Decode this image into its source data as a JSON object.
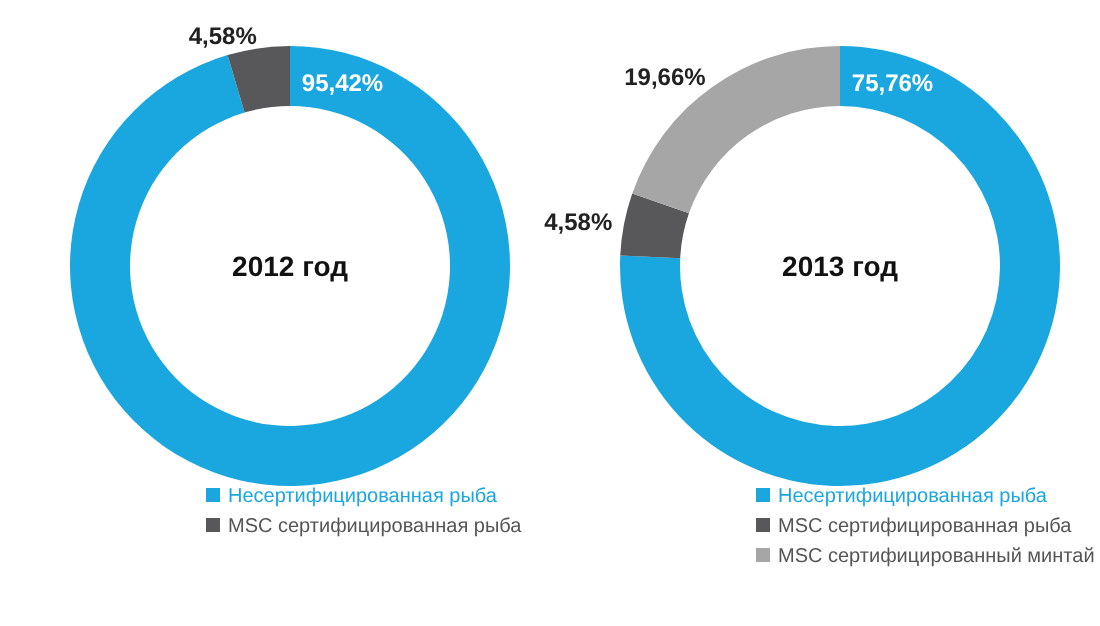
{
  "chart_data": [
    {
      "type": "donut",
      "title": "2012 год",
      "categories": [
        "Несертифицированная рыба",
        "MSC сертифицированная рыба"
      ],
      "values": [
        95.42,
        4.58
      ],
      "colors": [
        "#1aa7df",
        "#58585a"
      ],
      "value_labels": [
        "95,42%",
        "4,58%"
      ],
      "legend": "bottom"
    },
    {
      "type": "donut",
      "title": "2013 год",
      "categories": [
        "Несертифицированная рыба",
        "MSC сертифицированная рыба",
        "MSC сертифицированный минтай"
      ],
      "values": [
        75.76,
        4.58,
        19.66
      ],
      "colors": [
        "#1aa7df",
        "#58585a",
        "#a6a6a6"
      ],
      "value_labels": [
        "75,76%",
        "4,58%",
        "19,66%"
      ],
      "legend": "bottom"
    }
  ]
}
